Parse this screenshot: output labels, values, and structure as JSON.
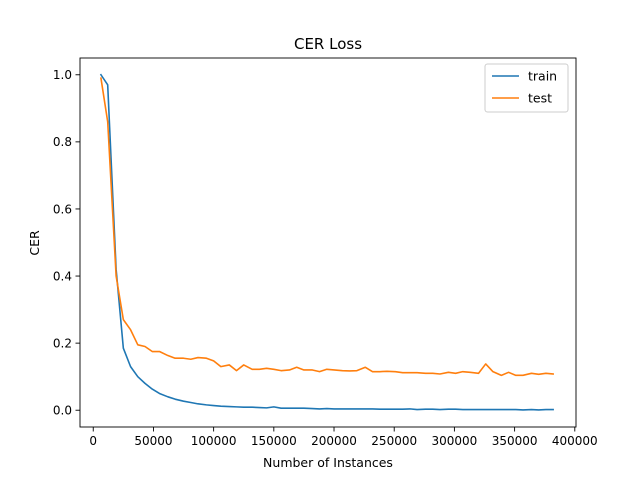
{
  "chart_data": {
    "type": "line",
    "title": "CER Loss",
    "xlabel": "Number of Instances",
    "ylabel": "CER",
    "xlim": [
      -11000,
      401000
    ],
    "ylim": [
      -0.05,
      1.05
    ],
    "xticks": [
      0,
      50000,
      100000,
      150000,
      200000,
      250000,
      300000,
      350000,
      400000
    ],
    "xtick_labels": [
      "0",
      "50000",
      "100000",
      "150000",
      "200000",
      "250000",
      "300000",
      "350000",
      "400000"
    ],
    "yticks": [
      0.0,
      0.2,
      0.4,
      0.6,
      0.8,
      1.0
    ],
    "ytick_labels": [
      "0.0",
      "0.2",
      "0.4",
      "0.6",
      "0.8",
      "1.0"
    ],
    "grid": false,
    "legend": "top-right",
    "series": [
      {
        "name": "train",
        "color": "#1f77b4",
        "x": [
          6400,
          12000,
          19000,
          25000,
          31000,
          37000,
          43000,
          49000,
          55000,
          62000,
          68000,
          75000,
          81000,
          87000,
          94000,
          100000,
          106000,
          113000,
          119000,
          125000,
          132000,
          138000,
          144000,
          150000,
          156000,
          163000,
          169000,
          175000,
          182000,
          188000,
          194000,
          200000,
          207000,
          213000,
          219000,
          226000,
          232000,
          238000,
          244000,
          251000,
          257000,
          263000,
          269000,
          276000,
          282000,
          288000,
          295000,
          301000,
          307000,
          313000,
          320000,
          326000,
          332000,
          339000,
          345000,
          351000,
          357000,
          364000,
          370000,
          376000,
          382000
        ],
        "y": [
          1.0,
          0.97,
          0.42,
          0.185,
          0.13,
          0.1,
          0.08,
          0.063,
          0.05,
          0.04,
          0.033,
          0.027,
          0.023,
          0.019,
          0.016,
          0.014,
          0.012,
          0.011,
          0.01,
          0.009,
          0.009,
          0.008,
          0.007,
          0.01,
          0.006,
          0.006,
          0.006,
          0.006,
          0.005,
          0.004,
          0.005,
          0.004,
          0.004,
          0.004,
          0.004,
          0.004,
          0.004,
          0.003,
          0.003,
          0.003,
          0.003,
          0.004,
          0.002,
          0.003,
          0.003,
          0.002,
          0.003,
          0.003,
          0.002,
          0.002,
          0.002,
          0.002,
          0.002,
          0.002,
          0.002,
          0.002,
          0.001,
          0.002,
          0.001,
          0.002,
          0.002
        ]
      },
      {
        "name": "test",
        "color": "#ff7f0e",
        "x": [
          6400,
          12000,
          19000,
          25000,
          31000,
          37000,
          43000,
          49000,
          55000,
          62000,
          68000,
          75000,
          81000,
          87000,
          94000,
          100000,
          106000,
          113000,
          119000,
          125000,
          132000,
          138000,
          144000,
          150000,
          156000,
          163000,
          169000,
          175000,
          182000,
          188000,
          194000,
          200000,
          207000,
          213000,
          219000,
          226000,
          232000,
          238000,
          244000,
          251000,
          257000,
          263000,
          269000,
          276000,
          282000,
          288000,
          295000,
          301000,
          307000,
          313000,
          320000,
          326000,
          332000,
          339000,
          345000,
          351000,
          357000,
          364000,
          370000,
          376000,
          382000
        ],
        "y": [
          0.99,
          0.86,
          0.4,
          0.27,
          0.24,
          0.195,
          0.19,
          0.175,
          0.175,
          0.163,
          0.155,
          0.155,
          0.152,
          0.157,
          0.155,
          0.147,
          0.13,
          0.135,
          0.118,
          0.135,
          0.122,
          0.122,
          0.125,
          0.122,
          0.118,
          0.12,
          0.128,
          0.12,
          0.12,
          0.115,
          0.122,
          0.12,
          0.118,
          0.117,
          0.118,
          0.128,
          0.115,
          0.115,
          0.116,
          0.115,
          0.112,
          0.112,
          0.112,
          0.11,
          0.11,
          0.108,
          0.113,
          0.11,
          0.115,
          0.113,
          0.11,
          0.138,
          0.115,
          0.104,
          0.113,
          0.104,
          0.104,
          0.11,
          0.107,
          0.11,
          0.108
        ]
      }
    ]
  }
}
